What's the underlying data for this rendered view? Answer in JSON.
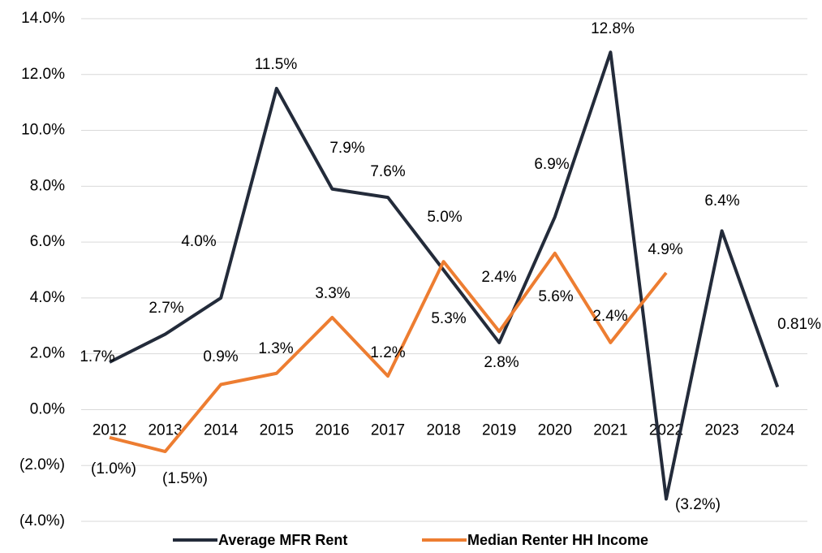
{
  "chart_data": {
    "type": "line",
    "categories": [
      "2012",
      "2013",
      "2014",
      "2015",
      "2016",
      "2017",
      "2018",
      "2019",
      "2020",
      "2021",
      "2022",
      "2023",
      "2024"
    ],
    "series": [
      {
        "name": "Average MFR Rent",
        "color": "#232b3a",
        "values": [
          1.7,
          2.7,
          4.0,
          11.5,
          7.9,
          7.6,
          5.0,
          2.4,
          6.9,
          12.8,
          -3.2,
          6.4,
          0.81
        ],
        "value_labels": [
          "1.7%",
          "2.7%",
          "4.0%",
          "11.5%",
          "7.9%",
          "7.6%",
          "5.0%",
          "2.4%",
          "6.9%",
          "12.8%",
          "(3.2%)",
          "6.4%",
          "0.81%"
        ]
      },
      {
        "name": "Median Renter HH Income",
        "color": "#ed7d31",
        "values": [
          -1.0,
          -1.5,
          0.9,
          1.3,
          3.3,
          1.2,
          5.3,
          2.8,
          5.6,
          2.4,
          4.9,
          null,
          null
        ],
        "value_labels": [
          "(1.0%)",
          "(1.5%)",
          "0.9%",
          "1.3%",
          "3.3%",
          "1.2%",
          "5.3%",
          "2.8%",
          "5.6%",
          "2.4%",
          "4.9%",
          null,
          null
        ]
      }
    ],
    "ylim": [
      -4,
      14
    ],
    "yticks": [
      {
        "value": -4,
        "label": "(4.0%)"
      },
      {
        "value": -2,
        "label": "(2.0%)"
      },
      {
        "value": 0,
        "label": "0.0%"
      },
      {
        "value": 2,
        "label": "2.0%"
      },
      {
        "value": 4,
        "label": "4.0%"
      },
      {
        "value": 6,
        "label": "6.0%"
      },
      {
        "value": 8,
        "label": "8.0%"
      },
      {
        "value": 10,
        "label": "10.0%"
      },
      {
        "value": 12,
        "label": "12.0%"
      },
      {
        "value": 14,
        "label": "14.0%"
      }
    ],
    "grid": true,
    "legend": "bottom"
  }
}
